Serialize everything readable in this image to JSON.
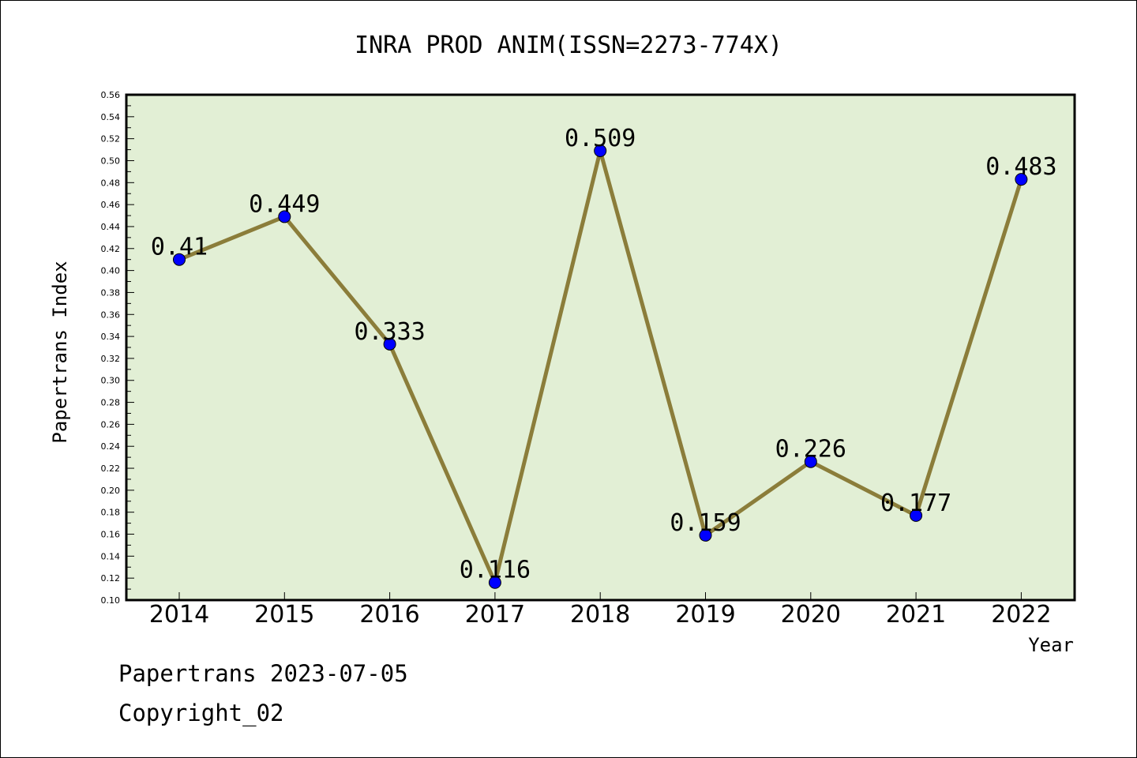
{
  "chart_data": {
    "type": "line",
    "title": "INRA PROD ANIM(ISSN=2273-774X)",
    "xlabel": "Year",
    "ylabel": "Papertrans Index",
    "categories": [
      "2014",
      "2015",
      "2016",
      "2017",
      "2018",
      "2019",
      "2020",
      "2021",
      "2022"
    ],
    "values": [
      0.41,
      0.449,
      0.333,
      0.116,
      0.509,
      0.159,
      0.226,
      0.177,
      0.483
    ],
    "data_labels": [
      "0.41",
      "0.449",
      "0.333",
      "0.116",
      "0.509",
      "0.159",
      "0.226",
      "0.177",
      "0.483"
    ],
    "ylim": [
      0.1,
      0.56
    ],
    "ytick_labels": [
      "0.10",
      "0.12",
      "0.14",
      "0.16",
      "0.18",
      "0.20",
      "0.22",
      "0.24",
      "0.26",
      "0.28",
      "0.30",
      "0.32",
      "0.34",
      "0.36",
      "0.38",
      "0.40",
      "0.42",
      "0.44",
      "0.46",
      "0.48",
      "0.50",
      "0.52",
      "0.54",
      "0.56"
    ],
    "grid": false,
    "colors": {
      "plot_background": "#e2efd5",
      "line": "#8b7d3a",
      "marker": "#0000ff"
    }
  },
  "footer": {
    "line1": "Papertrans 2023-07-05",
    "line2": "Copyright_02"
  }
}
